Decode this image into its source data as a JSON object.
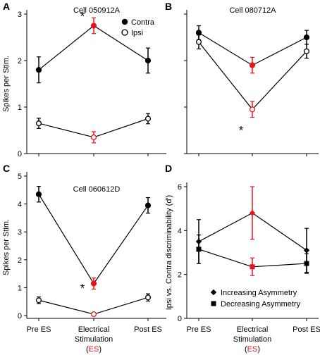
{
  "chart_data": [
    {
      "panel": "A",
      "type": "line",
      "title": "Cell 050912A",
      "ylabel": "Spikes per Stim.",
      "ylim": [
        0,
        3
      ],
      "yticks": [
        0,
        1,
        2,
        3
      ],
      "ytick_labels": [
        "0",
        "1",
        "2",
        "3"
      ],
      "categories": [
        "Pre ES",
        "Electrical Stimulation (ES)",
        "Post ES"
      ],
      "series": [
        {
          "name": "Contra",
          "marker": "filled-circle",
          "values": [
            1.8,
            2.75,
            2.0
          ],
          "err": [
            0.28,
            0.17,
            0.27
          ],
          "highlight_index": 1
        },
        {
          "name": "Ipsi",
          "marker": "open-circle",
          "values": [
            0.65,
            0.35,
            0.75
          ],
          "err": [
            0.11,
            0.12,
            0.11
          ],
          "highlight_index": 1
        }
      ],
      "annotations": [
        {
          "text": "*",
          "x_index": 1,
          "y": 3.05
        }
      ],
      "legend": "top-right"
    },
    {
      "panel": "B",
      "type": "line",
      "title": "Cell 080712A",
      "ylabel": "",
      "ylim": [
        0,
        3
      ],
      "yticks": [
        0,
        1,
        2,
        3
      ],
      "ytick_labels": [
        "",
        "",
        "",
        ""
      ],
      "categories": [
        "Pre ES",
        "Electrical Stimulation (ES)",
        "Post ES"
      ],
      "series": [
        {
          "name": "Contra",
          "marker": "filled-circle",
          "values": [
            2.6,
            1.9,
            2.5
          ],
          "err": [
            0.15,
            0.17,
            0.15
          ],
          "highlight_index": 1
        },
        {
          "name": "Ipsi",
          "marker": "open-circle",
          "values": [
            2.4,
            0.95,
            2.2
          ],
          "err": [
            0.15,
            0.17,
            0.15
          ],
          "highlight_index": 1
        }
      ],
      "annotations": [
        {
          "text": "*",
          "x_index": 1,
          "y": 0.6
        }
      ],
      "legend": "none"
    },
    {
      "panel": "C",
      "type": "line",
      "title": "Cell 060612D",
      "ylabel": "Spikes per Stim.",
      "ylim": [
        -0.1,
        5
      ],
      "yticks": [
        0,
        1,
        2,
        3,
        4,
        5
      ],
      "ytick_labels": [
        "0",
        "1",
        "2",
        "3",
        "4",
        "5"
      ],
      "categories": [
        "Pre ES",
        "Electrical Stimulation (ES)",
        "Post ES"
      ],
      "series": [
        {
          "name": "Contra",
          "marker": "filled-circle",
          "values": [
            4.35,
            1.15,
            3.95
          ],
          "err": [
            0.28,
            0.2,
            0.28
          ],
          "highlight_index": 1
        },
        {
          "name": "Ipsi",
          "marker": "open-circle",
          "values": [
            0.55,
            0.05,
            0.65
          ],
          "err": [
            0.12,
            0.0,
            0.13
          ],
          "highlight_index": 1
        }
      ],
      "annotations": [
        {
          "text": "*",
          "x_index": 1,
          "y": 1.15
        }
      ],
      "legend": "none"
    },
    {
      "panel": "D",
      "type": "line",
      "title": "",
      "ylabel": "Ipsi vs. Contra discriminability (d')",
      "ylim": [
        0,
        6
      ],
      "yticks": [
        0,
        2,
        4,
        6
      ],
      "ytick_labels": [
        "0",
        "2",
        "4",
        "6"
      ],
      "categories": [
        "Pre ES",
        "Electrical Stimulation (ES)",
        "Post ES"
      ],
      "series": [
        {
          "name": "Increasing Asymmetry",
          "marker": "diamond",
          "values": [
            3.5,
            4.8,
            3.1
          ],
          "err": [
            1.0,
            1.2,
            1.0
          ],
          "highlight_index": 1
        },
        {
          "name": "Decreasing Asymmetry",
          "marker": "square",
          "values": [
            3.15,
            2.35,
            2.5
          ],
          "err": [
            0.65,
            0.4,
            0.45
          ],
          "highlight_index": 1
        }
      ],
      "annotations": [],
      "legend": "bottom-right"
    }
  ],
  "x_labels": {
    "pre": "Pre ES",
    "middle_line1": "Electrical",
    "middle_line2": "Stimulation",
    "paren_open": "(",
    "es": "ES",
    "paren_close": ")",
    "post": "Post ES"
  },
  "colors": {
    "default": "#000000",
    "highlight": "#e8141b"
  }
}
